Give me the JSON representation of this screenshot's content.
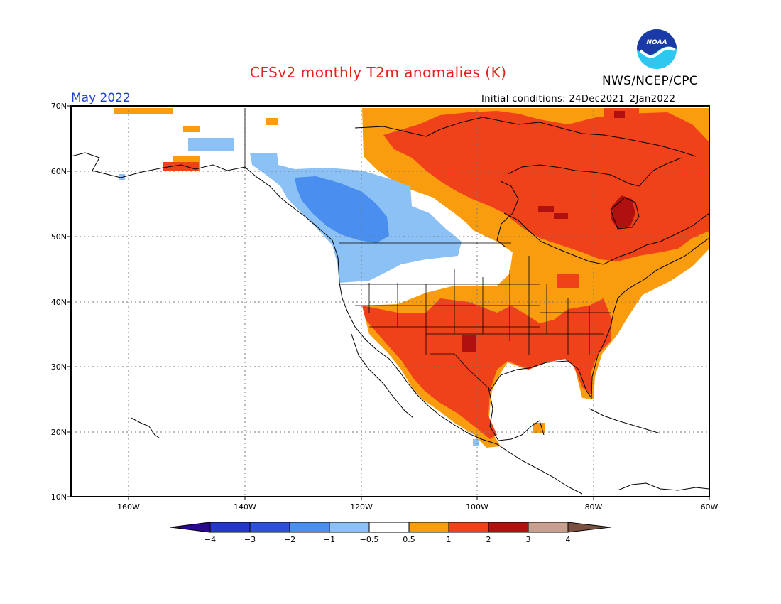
{
  "header": {
    "title": "CFSv2 monthly T2m anomalies (K)",
    "organization": "NWS/NCEP/CPC",
    "valid_month": "May 2022",
    "initial_conditions": "Initial conditions: 24Dec2021–2Jan2022",
    "logo_text": "NOAA"
  },
  "map": {
    "lat_labels": [
      "70N",
      "60N",
      "50N",
      "40N",
      "30N",
      "20N",
      "10N"
    ],
    "lon_labels": [
      "160W",
      "140W",
      "120W",
      "100W",
      "80W",
      "60W"
    ]
  },
  "legend": {
    "labels": [
      "−4",
      "−3",
      "−2",
      "−1",
      "−0.5",
      "0.5",
      "1",
      "2",
      "3",
      "4"
    ],
    "colors": {
      "below_-4": "#2a0a8c",
      "-4_to_-3": "#2437c8",
      "-3_to_-2": "#2e50d8",
      "-2_to_-1": "#4a8ef0",
      "-1_to_-0.5": "#8cc1f5",
      "-0.5_to_0.5": "#ffffff",
      "0.5_to_1": "#f99c0e",
      "1_to_2": "#f0421a",
      "2_to_3": "#b01010",
      "3_to_4": "#c8a090",
      "above_4": "#7a5040"
    }
  }
}
